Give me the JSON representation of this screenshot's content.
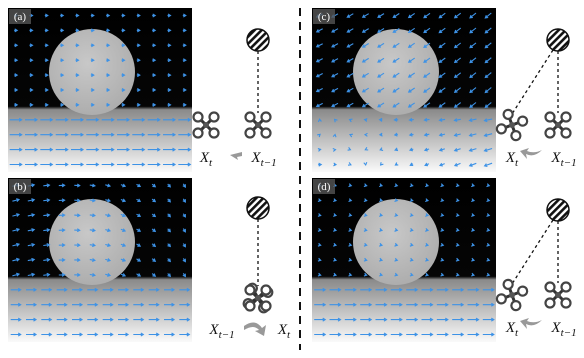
{
  "panels": [
    {
      "label": "(a)",
      "current": {
        "base": "X",
        "sub": "t"
      },
      "previous": {
        "base": "X",
        "sub": "t−1"
      }
    },
    {
      "label": "(b)",
      "current": {
        "base": "X",
        "sub": "t"
      },
      "previous": {
        "base": "X",
        "sub": "t−1"
      }
    },
    {
      "label": "(c)",
      "current": {
        "base": "X",
        "sub": "t"
      },
      "previous": {
        "base": "X",
        "sub": "t−1"
      }
    },
    {
      "label": "(d)",
      "current": {
        "base": "X",
        "sub": "t"
      },
      "previous": {
        "base": "X",
        "sub": "t−1"
      }
    }
  ]
}
